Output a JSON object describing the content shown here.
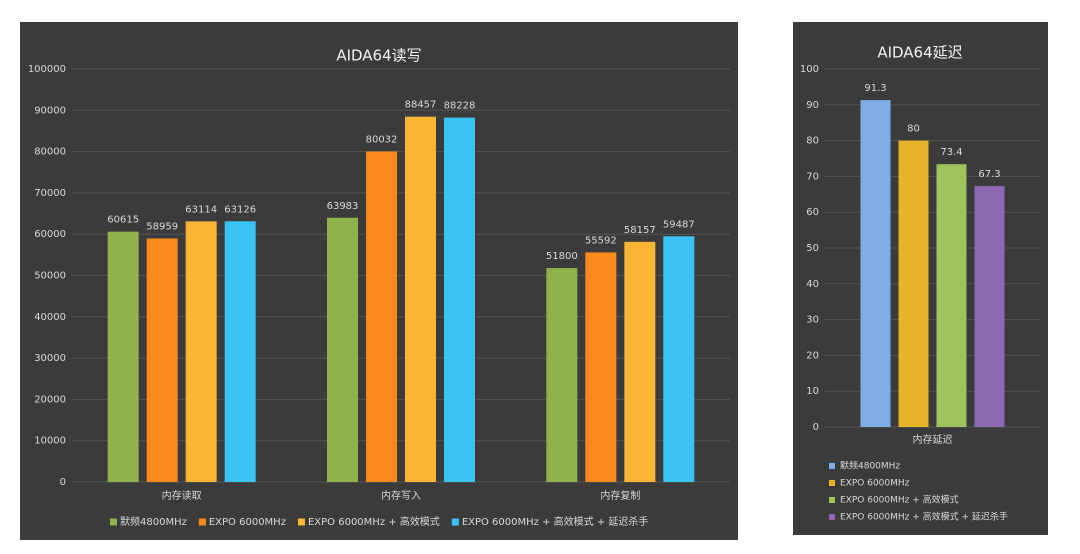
{
  "chart_data": [
    {
      "type": "bar",
      "title": "AIDA64读写",
      "categories": [
        "内存读取",
        "内存写入",
        "内存复制"
      ],
      "series": [
        {
          "name": "默频4800MHz",
          "color": "#8fb34a",
          "values": [
            60615,
            63983,
            51800
          ]
        },
        {
          "name": "EXPO 6000MHz",
          "color": "#f98b1d",
          "values": [
            58959,
            80032,
            55592
          ]
        },
        {
          "name": "EXPO 6000MHz + 高效模式",
          "color": "#fbb534",
          "values": [
            63114,
            88457,
            58157
          ]
        },
        {
          "name": "EXPO 6000MHz + 高效模式 + 延迟杀手",
          "color": "#3cc3f5",
          "values": [
            63126,
            88228,
            59487
          ]
        }
      ],
      "ylim": [
        0,
        100000
      ],
      "yticks": [
        0,
        10000,
        20000,
        30000,
        40000,
        50000,
        60000,
        70000,
        80000,
        90000,
        100000
      ],
      "grid": true,
      "legend": "bottom"
    },
    {
      "type": "bar",
      "title": "AIDA64延迟",
      "categories": [
        "内存延迟"
      ],
      "series": [
        {
          "name": "默频4800MHz",
          "color": "#7faee6",
          "values": [
            91.3
          ]
        },
        {
          "name": "EXPO 6000MHz",
          "color": "#e8b32a",
          "values": [
            80
          ]
        },
        {
          "name": "EXPO 6000MHz + 高效模式",
          "color": "#9fc35e",
          "values": [
            73.4
          ]
        },
        {
          "name": "EXPO 6000MHz + 高效模式 + 延迟杀手",
          "color": "#8c68b0",
          "values": [
            67.3
          ]
        }
      ],
      "ylim": [
        0,
        100
      ],
      "yticks": [
        0,
        10,
        20,
        30,
        40,
        50,
        60,
        70,
        80,
        90,
        100
      ],
      "grid": true,
      "legend": "bottom-stacked"
    }
  ]
}
